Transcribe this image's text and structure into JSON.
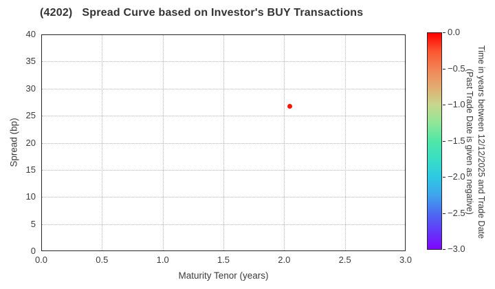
{
  "chart_data": {
    "type": "scatter",
    "title": "(4202)   Spread Curve based on Investor's BUY Transactions",
    "xlabel": "Maturity Tenor (years)",
    "ylabel": "Spread (bp)",
    "xlim": [
      0.0,
      3.0
    ],
    "ylim": [
      0,
      40
    ],
    "xticks": [
      0.0,
      0.5,
      1.0,
      1.5,
      2.0,
      2.5,
      3.0
    ],
    "xtick_labels": [
      "0.0",
      "0.5",
      "1.0",
      "1.5",
      "2.0",
      "2.5",
      "3.0"
    ],
    "yticks": [
      0,
      5,
      10,
      15,
      20,
      25,
      30,
      35,
      40
    ],
    "ytick_labels": [
      "0",
      "5",
      "10",
      "15",
      "20",
      "25",
      "30",
      "35",
      "40"
    ],
    "grid": true,
    "grid_style": "dotted",
    "legend": "none",
    "points": [
      {
        "x": 2.04,
        "y": 26.8,
        "color_value": 0.0,
        "color": "#fe1200"
      }
    ],
    "colorbar": {
      "label_line1": "Time in years between 12/12/2025 and Trade Date",
      "label_line2": "(Past Trade Date is given as negative)",
      "range": [
        0.0,
        -3.0
      ],
      "ticks": [
        0.0,
        -0.5,
        -1.0,
        -1.5,
        -2.0,
        -2.5,
        -3.0
      ],
      "tick_labels": [
        "0.0",
        "−0.5",
        "−1.0",
        "−1.5",
        "−2.0",
        "−2.5",
        "−3.0"
      ],
      "colormap": "rainbow",
      "gradient_stops": [
        "#fe0000",
        "#fb5530",
        "#f28456",
        "#e3ab72",
        "#c6d88c",
        "#90e698",
        "#50e6a6",
        "#38dfc4",
        "#2dc9e2",
        "#3fa5ee",
        "#4b6cf1",
        "#6338f8",
        "#7f06fc"
      ]
    }
  }
}
